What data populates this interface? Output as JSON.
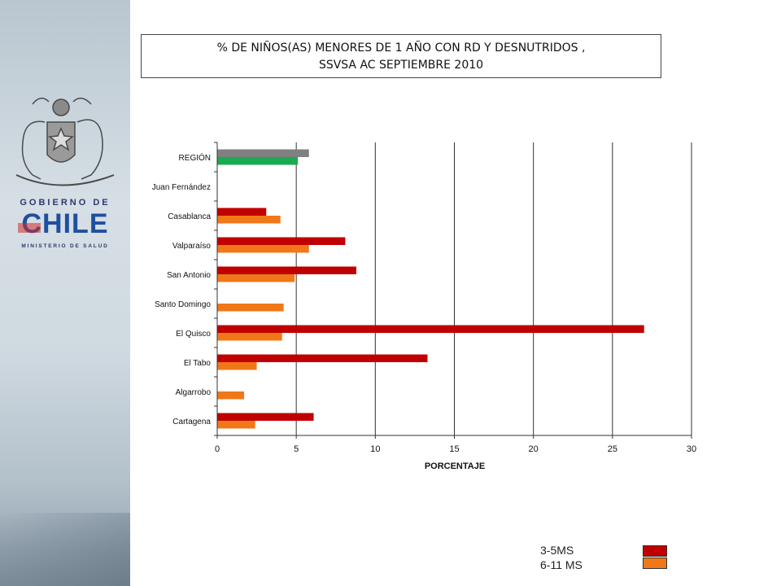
{
  "header": {
    "logo_top": "GOBIERNO DE",
    "logo_main": "CHILE",
    "logo_sub": "MINISTERIO DE SALUD"
  },
  "title": {
    "line1": "% DE  NIÑOS(AS) MENORES DE 1 AÑO CON RD Y DESNUTRIDOS  ,",
    "line2": "SSVSA AC SEPTIEMBRE 2010"
  },
  "chart_data": {
    "type": "bar",
    "orientation": "horizontal",
    "categories": [
      "REGIÓN",
      "Juan Fernández",
      "Casablanca",
      "Valparaíso",
      "San Antonio",
      "Santo Domingo",
      "El Quisco",
      "El Tabo",
      "Algarrobo",
      "Cartagena"
    ],
    "series": [
      {
        "name": "3-5MS",
        "color": "#c00000",
        "values": [
          5.8,
          null,
          3.1,
          8.1,
          8.8,
          null,
          27.0,
          13.3,
          null,
          6.1
        ]
      },
      {
        "name": "6-11 MS",
        "color": "#f07818",
        "values": [
          5.1,
          null,
          4.0,
          5.8,
          4.9,
          4.2,
          4.1,
          2.5,
          1.7,
          2.4
        ]
      }
    ],
    "region_colors": [
      "#808080",
      "#1aaa50"
    ],
    "xlabel": "PORCENTAJE",
    "ylabel": "",
    "xlim": [
      0,
      30
    ],
    "xticks": [
      0,
      5,
      10,
      15,
      20,
      25,
      30
    ],
    "grid": true,
    "legend_position": "bottom-right"
  },
  "legend": {
    "items": [
      {
        "label": "3-5MS",
        "color": "#c00000"
      },
      {
        "label": "6-11 MS",
        "color": "#f07818"
      }
    ]
  }
}
